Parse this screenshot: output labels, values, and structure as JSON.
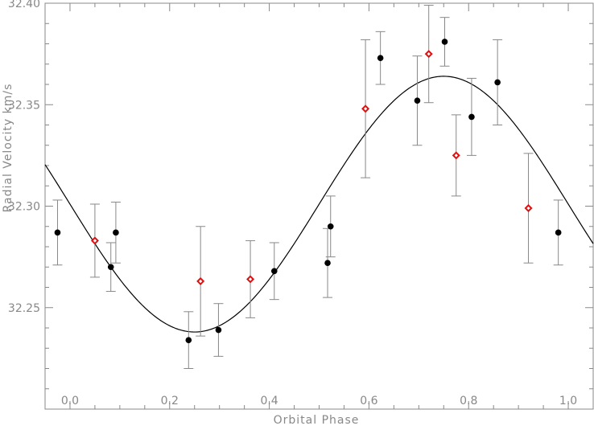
{
  "chart_data": {
    "type": "scatter",
    "title": "",
    "xlabel": "Orbital Phase",
    "ylabel": "Radial Velocity km/s",
    "xlim": [
      -0.05,
      1.05
    ],
    "ylim": [
      32.2,
      32.4
    ],
    "x_ticks": [
      0.0,
      0.2,
      0.4,
      0.6,
      0.8,
      1.0
    ],
    "x_tick_labels": [
      "0.0",
      "0.2",
      "0.4",
      "0.6",
      "0.8",
      "1.0"
    ],
    "y_ticks": [
      32.25,
      32.3,
      32.35,
      32.4
    ],
    "y_tick_labels": [
      "32.25",
      "32.30",
      "32.35",
      "32.40"
    ],
    "grid": false,
    "legend": "none",
    "series": [
      {
        "marker": "filled-circle",
        "color": "#000000",
        "points": [
          {
            "x": -0.025,
            "y": 32.287,
            "err": 0.016
          },
          {
            "x": 0.082,
            "y": 32.27,
            "err": 0.012
          },
          {
            "x": 0.092,
            "y": 32.287,
            "err": 0.015
          },
          {
            "x": 0.238,
            "y": 32.234,
            "err": 0.014
          },
          {
            "x": 0.298,
            "y": 32.239,
            "err": 0.013
          },
          {
            "x": 0.41,
            "y": 32.268,
            "err": 0.014
          },
          {
            "x": 0.517,
            "y": 32.272,
            "err": 0.017
          },
          {
            "x": 0.523,
            "y": 32.29,
            "err": 0.015
          },
          {
            "x": 0.623,
            "y": 32.373,
            "err": 0.013
          },
          {
            "x": 0.697,
            "y": 32.352,
            "err": 0.022
          },
          {
            "x": 0.752,
            "y": 32.381,
            "err": 0.012
          },
          {
            "x": 0.806,
            "y": 32.344,
            "err": 0.019
          },
          {
            "x": 0.858,
            "y": 32.361,
            "err": 0.021
          },
          {
            "x": 0.98,
            "y": 32.287,
            "err": 0.016
          }
        ]
      },
      {
        "marker": "open-diamond",
        "color": "#dd1111",
        "points": [
          {
            "x": 0.05,
            "y": 32.283,
            "err": 0.018
          },
          {
            "x": 0.262,
            "y": 32.263,
            "err": 0.027
          },
          {
            "x": 0.362,
            "y": 32.264,
            "err": 0.019
          },
          {
            "x": 0.593,
            "y": 32.348,
            "err": 0.034
          },
          {
            "x": 0.72,
            "y": 32.375,
            "err": 0.024
          },
          {
            "x": 0.775,
            "y": 32.325,
            "err": 0.02
          },
          {
            "x": 0.92,
            "y": 32.299,
            "err": 0.027
          }
        ]
      }
    ],
    "fit_curve": {
      "type": "sinusoid",
      "mean": 32.301,
      "amplitude": 0.063,
      "phase_of_max": 0.75,
      "color": "#000000"
    }
  }
}
